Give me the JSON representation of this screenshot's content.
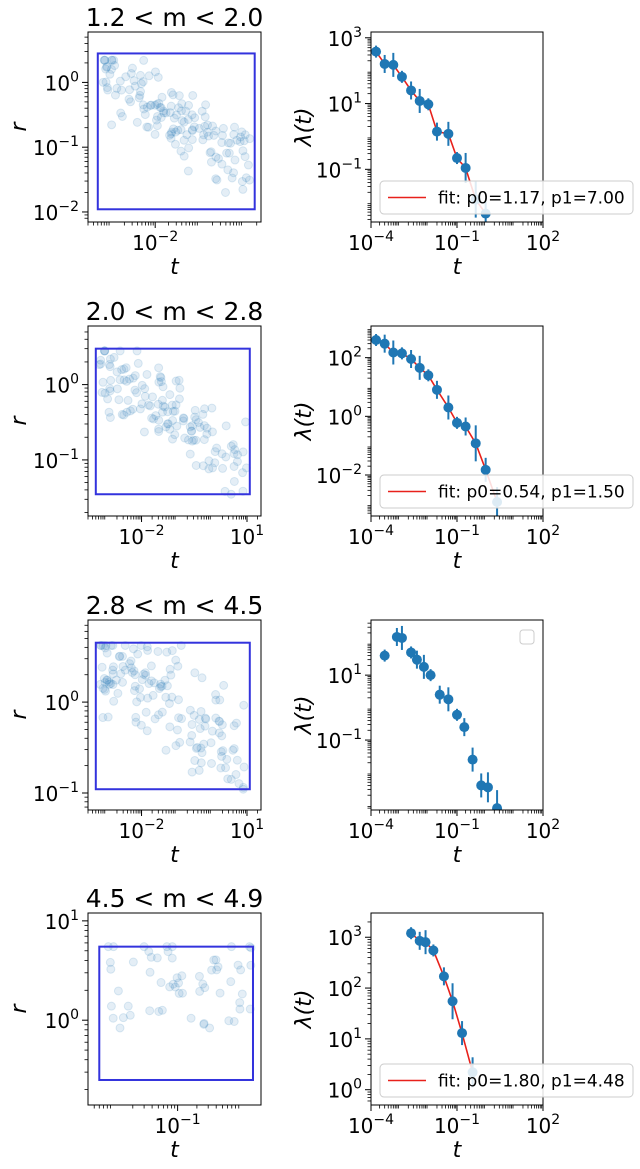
{
  "chart_data": [
    {
      "type": "scatter",
      "title": "1.2 < m < 2.0",
      "xlabel": "t",
      "ylabel": "r",
      "xscale": "log",
      "yscale": "log",
      "xlim": [
        0.0003,
        2.5
      ],
      "ylim": [
        0.007,
        6
      ],
      "xticks": [
        {
          "v": 0.01,
          "label": "10^-2"
        }
      ],
      "yticks": [
        {
          "v": 0.01,
          "label": "10^-2"
        },
        {
          "v": 0.1,
          "label": "10^-1"
        },
        {
          "v": 1,
          "label": "10^0"
        }
      ],
      "box": {
        "x": [
          0.0005,
          1.8
        ],
        "y": [
          0.011,
          2.8
        ]
      },
      "point_color": "#1f77b4",
      "points": {
        "count": 150,
        "x_range": [
          0.0006,
          1.5
        ],
        "y_range": [
          0.02,
          2.2
        ],
        "trend": "decreasing",
        "seed": 11
      }
    },
    {
      "type": "line",
      "xlabel": "t",
      "ylabel": "λ(t)",
      "xscale": "log",
      "yscale": "log",
      "xlim": [
        0.0001,
        100
      ],
      "ylim": [
        0.0025,
        1500
      ],
      "xticks": [
        {
          "v": 0.0001,
          "label": "10^-4"
        },
        {
          "v": 0.1,
          "label": "10^-1"
        },
        {
          "v": 100,
          "label": "10^2"
        }
      ],
      "yticks": [
        {
          "v": 0.1,
          "label": "10^-1"
        },
        {
          "v": 10,
          "label": "10^1"
        },
        {
          "v": 1000,
          "label": "10^3"
        }
      ],
      "series": [
        {
          "name": "data",
          "x": [
            0.00015,
            0.0003,
            0.0006,
            0.0012,
            0.0025,
            0.005,
            0.01,
            0.02,
            0.05,
            0.1,
            0.2,
            0.45,
            1.0
          ],
          "y": [
            380,
            160,
            150,
            65,
            25,
            12,
            9.5,
            1.4,
            1.2,
            0.22,
            0.11,
            0.012,
            0.0045
          ]
        },
        {
          "name": "fit: p0=1.17, p1=7.00",
          "p": [
            1.17,
            7.0
          ]
        }
      ],
      "legend": {
        "position": "lower-left",
        "label": "fit: p0=1.17, p1=7.00"
      }
    },
    {
      "type": "scatter",
      "title": "2.0 < m < 2.8",
      "xlabel": "t",
      "ylabel": "r",
      "xscale": "log",
      "yscale": "log",
      "xlim": [
        0.0003,
        25
      ],
      "ylim": [
        0.018,
        6
      ],
      "xticks": [
        {
          "v": 0.01,
          "label": "10^-2"
        },
        {
          "v": 10,
          "label": "10^1"
        }
      ],
      "yticks": [
        {
          "v": 0.1,
          "label": "10^-1"
        },
        {
          "v": 1,
          "label": "10^0"
        }
      ],
      "box": {
        "x": [
          0.0005,
          12
        ],
        "y": [
          0.035,
          3.0
        ]
      },
      "point_color": "#1f77b4",
      "points": {
        "count": 140,
        "x_range": [
          0.0006,
          10
        ],
        "y_range": [
          0.035,
          2.8
        ],
        "trend": "decreasing",
        "seed": 23
      }
    },
    {
      "type": "line",
      "xlabel": "t",
      "ylabel": "λ(t)",
      "xscale": "log",
      "yscale": "log",
      "xlim": [
        0.0001,
        100
      ],
      "ylim": [
        0.0004,
        1200
      ],
      "xticks": [
        {
          "v": 0.0001,
          "label": "10^-4"
        },
        {
          "v": 0.1,
          "label": "10^-1"
        },
        {
          "v": 100,
          "label": "10^2"
        }
      ],
      "yticks": [
        {
          "v": 0.01,
          "label": "10^-2"
        },
        {
          "v": 1,
          "label": "10^0"
        },
        {
          "v": 100,
          "label": "10^2"
        }
      ],
      "series": [
        {
          "name": "data",
          "x": [
            0.00015,
            0.0003,
            0.0006,
            0.0012,
            0.0025,
            0.005,
            0.01,
            0.02,
            0.05,
            0.1,
            0.2,
            0.45,
            1.0,
            2.5
          ],
          "y": [
            400,
            300,
            150,
            140,
            90,
            45,
            25,
            8,
            2,
            0.6,
            0.45,
            0.12,
            0.015,
            0.0012
          ]
        },
        {
          "name": "fit: p0=0.54, p1=1.50",
          "p": [
            0.54,
            1.5
          ]
        }
      ],
      "legend": {
        "position": "lower-left",
        "label": "fit: p0=0.54, p1=1.50"
      }
    },
    {
      "type": "scatter",
      "title": "2.8 < m < 4.5",
      "xlabel": "t",
      "ylabel": "r",
      "xscale": "log",
      "yscale": "log",
      "xlim": [
        0.0003,
        25
      ],
      "ylim": [
        0.065,
        8
      ],
      "xticks": [
        {
          "v": 0.01,
          "label": "10^-2"
        },
        {
          "v": 10,
          "label": "10^1"
        }
      ],
      "yticks": [
        {
          "v": 0.1,
          "label": "10^-1"
        },
        {
          "v": 1,
          "label": "10^0"
        }
      ],
      "box": {
        "x": [
          0.0005,
          12
        ],
        "y": [
          0.11,
          4.5
        ]
      },
      "point_color": "#1f77b4",
      "points": {
        "count": 150,
        "x_range": [
          0.0006,
          10
        ],
        "y_range": [
          0.11,
          4.2
        ],
        "trend": "decreasing",
        "seed": 37
      }
    },
    {
      "type": "line",
      "xlabel": "t",
      "ylabel": "λ(t)",
      "xscale": "log",
      "yscale": "log",
      "xlim": [
        0.0001,
        100
      ],
      "ylim": [
        0.0007,
        500
      ],
      "xticks": [
        {
          "v": 0.0001,
          "label": "10^-4"
        },
        {
          "v": 0.1,
          "label": "10^-1"
        },
        {
          "v": 100,
          "label": "10^2"
        }
      ],
      "yticks": [
        {
          "v": 0.1,
          "label": "10^-1"
        },
        {
          "v": 10,
          "label": "10^1"
        }
      ],
      "series": [
        {
          "name": "data",
          "x": [
            0.0003,
            0.0008,
            0.0012,
            0.0025,
            0.004,
            0.007,
            0.012,
            0.025,
            0.05,
            0.1,
            0.18,
            0.35,
            0.7,
            1.2,
            2.5
          ],
          "y": [
            40,
            150,
            140,
            50,
            30,
            18,
            10,
            2.5,
            1.8,
            0.6,
            0.25,
            0.025,
            0.004,
            0.0035,
            0.0008
          ]
        },
        {
          "name": "",
          "p": null
        }
      ],
      "legend": {
        "position": "upper-right",
        "label": ""
      }
    },
    {
      "type": "scatter",
      "title": "4.5 < m < 4.9",
      "xlabel": "t",
      "ylabel": "r",
      "xscale": "log",
      "yscale": "log",
      "xlim": [
        0.004,
        2.0
      ],
      "ylim": [
        0.14,
        12
      ],
      "xticks": [
        {
          "v": 0.1,
          "label": "10^-1"
        }
      ],
      "yticks": [
        {
          "v": 1,
          "label": "10^0"
        },
        {
          "v": 10,
          "label": "10^1"
        }
      ],
      "box": {
        "x": [
          0.006,
          1.5
        ],
        "y": [
          0.25,
          5.5
        ]
      },
      "point_color": "#1f77b4",
      "points": {
        "count": 60,
        "x_range": [
          0.008,
          1.4
        ],
        "y_range": [
          0.6,
          5.5
        ],
        "trend": "flat",
        "seed": 51
      }
    },
    {
      "type": "line",
      "xlabel": "t",
      "ylabel": "λ(t)",
      "xscale": "log",
      "yscale": "log",
      "xlim": [
        0.0001,
        100
      ],
      "ylim": [
        0.5,
        3000
      ],
      "xticks": [
        {
          "v": 0.0001,
          "label": "10^-4"
        },
        {
          "v": 0.1,
          "label": "10^-1"
        },
        {
          "v": 100,
          "label": "10^2"
        }
      ],
      "yticks": [
        {
          "v": 1,
          "label": "10^0"
        },
        {
          "v": 10,
          "label": "10^1"
        },
        {
          "v": 100,
          "label": "10^2"
        },
        {
          "v": 1000,
          "label": "10^3"
        }
      ],
      "series": [
        {
          "name": "data",
          "x": [
            0.0025,
            0.005,
            0.008,
            0.015,
            0.035,
            0.07,
            0.15,
            0.35
          ],
          "y": [
            1200,
            850,
            800,
            550,
            170,
            55,
            13,
            2.2
          ]
        },
        {
          "name": "fit: p0=1.80, p1=4.48",
          "p": [
            1.8,
            4.48
          ]
        }
      ],
      "legend": {
        "position": "lower-left",
        "label": "fit: p0=1.80, p1=4.48"
      }
    }
  ]
}
